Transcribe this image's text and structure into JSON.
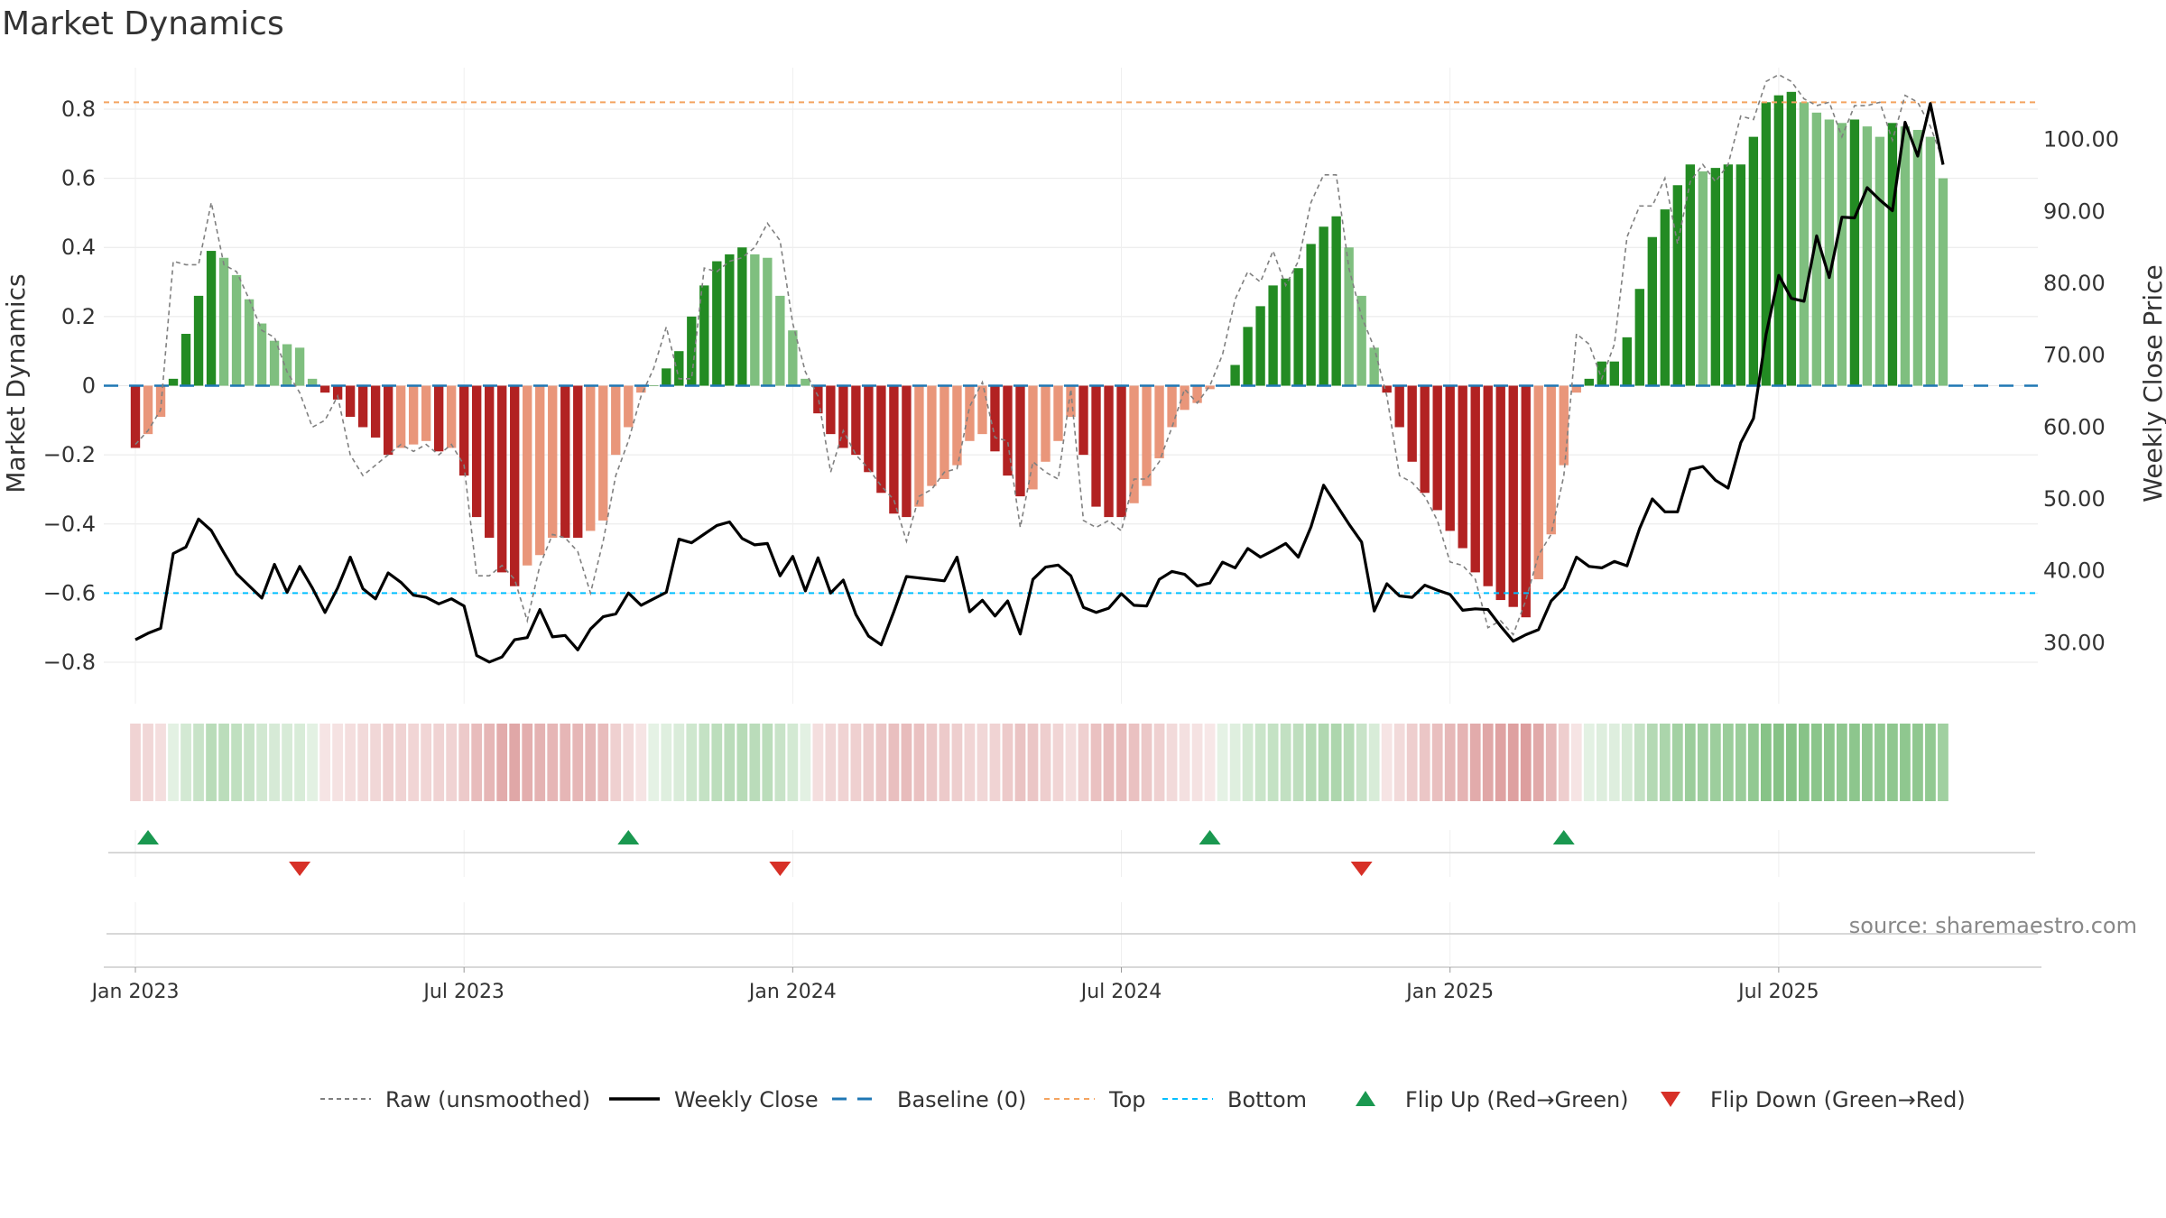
{
  "chart_data": {
    "type": "bar",
    "title": "Market Dynamics",
    "ylabel": "Market Dynamics",
    "y2label": "Weekly Close Price",
    "ylim": [
      -0.92,
      0.92
    ],
    "y2lim": [
      21.5,
      110
    ],
    "yticks": [
      -0.8,
      -0.6,
      -0.4,
      -0.2,
      0,
      0.2,
      0.4,
      0.6,
      0.8
    ],
    "ytick_labels": [
      "−0.8",
      "−0.6",
      "−0.4",
      "−0.2",
      "0",
      "0.2",
      "0.4",
      "0.6",
      "0.8"
    ],
    "y2ticks": [
      30,
      40,
      50,
      60,
      70,
      80,
      90,
      100
    ],
    "y2tick_labels": [
      "30.00",
      "40.00",
      "50.00",
      "60.00",
      "70.00",
      "80.00",
      "90.00",
      "100.00"
    ],
    "xlim": [
      -2.5,
      150.5
    ],
    "xticks": [
      {
        "week": 0,
        "label": "Jan 2023"
      },
      {
        "week": 26,
        "label": "Jul 2023"
      },
      {
        "week": 52,
        "label": "Jan 2024"
      },
      {
        "week": 78,
        "label": "Jul 2024"
      },
      {
        "week": 104,
        "label": "Jan 2025"
      },
      {
        "week": 130,
        "label": "Jul 2025"
      }
    ],
    "top_level": 0.82,
    "bottom_level": -0.6,
    "baseline": 0,
    "smoothed": [
      -0.18,
      -0.14,
      -0.09,
      0.02,
      0.15,
      0.26,
      0.39,
      0.37,
      0.32,
      0.25,
      0.18,
      0.13,
      0.12,
      0.11,
      0.02,
      -0.02,
      -0.04,
      -0.09,
      -0.12,
      -0.15,
      -0.2,
      -0.18,
      -0.17,
      -0.16,
      -0.19,
      -0.18,
      -0.26,
      -0.38,
      -0.44,
      -0.54,
      -0.58,
      -0.52,
      -0.49,
      -0.44,
      -0.44,
      -0.44,
      -0.42,
      -0.39,
      -0.2,
      -0.12,
      -0.02,
      0.0,
      0.05,
      0.1,
      0.2,
      0.29,
      0.36,
      0.38,
      0.4,
      0.38,
      0.37,
      0.26,
      0.16,
      0.02,
      -0.08,
      -0.14,
      -0.18,
      -0.2,
      -0.25,
      -0.31,
      -0.37,
      -0.38,
      -0.35,
      -0.29,
      -0.27,
      -0.23,
      -0.16,
      -0.14,
      -0.19,
      -0.26,
      -0.32,
      -0.3,
      -0.22,
      -0.16,
      -0.09,
      -0.2,
      -0.35,
      -0.38,
      -0.38,
      -0.34,
      -0.29,
      -0.21,
      -0.12,
      -0.07,
      -0.05,
      -0.01,
      0.0,
      0.06,
      0.17,
      0.23,
      0.29,
      0.31,
      0.34,
      0.41,
      0.46,
      0.49,
      0.4,
      0.26,
      0.11,
      -0.02,
      -0.12,
      -0.22,
      -0.31,
      -0.36,
      -0.42,
      -0.47,
      -0.54,
      -0.58,
      -0.62,
      -0.64,
      -0.67,
      -0.56,
      -0.43,
      -0.23,
      -0.02,
      0.02,
      0.07,
      0.07,
      0.14,
      0.28,
      0.43,
      0.51,
      0.58,
      0.64,
      0.62,
      0.63,
      0.64,
      0.64,
      0.72,
      0.82,
      0.84,
      0.85,
      0.82,
      0.79,
      0.77,
      0.76,
      0.77,
      0.75,
      0.72,
      0.76,
      0.75,
      0.74,
      0.72,
      0.6
    ],
    "raw": [
      -0.17,
      -0.13,
      -0.07,
      0.36,
      0.35,
      0.35,
      0.53,
      0.35,
      0.33,
      0.25,
      0.16,
      0.14,
      0.04,
      -0.02,
      -0.12,
      -0.1,
      -0.03,
      -0.2,
      -0.26,
      -0.23,
      -0.2,
      -0.17,
      -0.19,
      -0.17,
      -0.2,
      -0.17,
      -0.23,
      -0.55,
      -0.55,
      -0.52,
      -0.56,
      -0.68,
      -0.52,
      -0.43,
      -0.44,
      -0.48,
      -0.6,
      -0.45,
      -0.26,
      -0.16,
      -0.03,
      0.05,
      0.17,
      0.02,
      0.02,
      0.34,
      0.33,
      0.36,
      0.37,
      0.4,
      0.47,
      0.42,
      0.18,
      0.04,
      -0.03,
      -0.25,
      -0.13,
      -0.2,
      -0.24,
      -0.29,
      -0.33,
      -0.45,
      -0.32,
      -0.3,
      -0.25,
      -0.24,
      -0.06,
      0.01,
      -0.15,
      -0.16,
      -0.41,
      -0.22,
      -0.25,
      -0.27,
      -0.01,
      -0.39,
      -0.41,
      -0.39,
      -0.42,
      -0.27,
      -0.27,
      -0.22,
      -0.12,
      -0.01,
      -0.05,
      0.0,
      0.09,
      0.25,
      0.33,
      0.3,
      0.39,
      0.29,
      0.36,
      0.53,
      0.61,
      0.61,
      0.34,
      0.2,
      0.11,
      -0.03,
      -0.26,
      -0.28,
      -0.32,
      -0.39,
      -0.51,
      -0.52,
      -0.56,
      -0.7,
      -0.68,
      -0.72,
      -0.62,
      -0.49,
      -0.43,
      -0.26,
      0.15,
      0.12,
      0.02,
      0.12,
      0.43,
      0.52,
      0.52,
      0.6,
      0.41,
      0.59,
      0.64,
      0.59,
      0.64,
      0.78,
      0.77,
      0.88,
      0.9,
      0.88,
      0.83,
      0.81,
      0.82,
      0.72,
      0.81,
      0.81,
      0.82,
      0.71,
      0.84,
      0.82,
      0.75,
      0.65
    ],
    "weekly_close": [
      30.4,
      31.3,
      32.0,
      42.4,
      43.3,
      47.2,
      45.6,
      42.5,
      39.6,
      37.9,
      36.2,
      40.9,
      37.0,
      40.6,
      37.6,
      34.2,
      37.6,
      41.9,
      37.5,
      36.1,
      39.7,
      38.4,
      36.6,
      36.3,
      35.4,
      36.1,
      35.1,
      28.2,
      27.3,
      28.0,
      30.4,
      30.7,
      34.6,
      30.8,
      31.0,
      29.0,
      31.9,
      33.6,
      34.0,
      36.9,
      35.2,
      36.1,
      37.0,
      44.4,
      43.9,
      45.1,
      46.3,
      46.8,
      44.5,
      43.6,
      43.8,
      39.3,
      42.0,
      37.2,
      41.8,
      36.9,
      38.7,
      33.9,
      30.9,
      29.7,
      34.3,
      39.2,
      39.0,
      38.8,
      38.6,
      41.9,
      34.3,
      35.9,
      33.7,
      35.8,
      31.2,
      38.8,
      40.5,
      40.8,
      39.3,
      34.9,
      34.2,
      34.8,
      36.8,
      35.2,
      35.1,
      38.8,
      39.9,
      39.5,
      37.9,
      38.3,
      41.2,
      40.4,
      43.1,
      41.9,
      42.8,
      43.8,
      41.9,
      46.1,
      51.9,
      49.2,
      46.5,
      44.0,
      34.4,
      38.2,
      36.5,
      36.3,
      38.0,
      37.3,
      36.7,
      34.5,
      34.7,
      34.6,
      32.3,
      30.2,
      31.1,
      31.8,
      35.8,
      37.6,
      41.9,
      40.6,
      40.4,
      41.3,
      40.7,
      45.9,
      50.0,
      48.2,
      48.2,
      54.1,
      54.5,
      52.6,
      51.5,
      57.8,
      61.2,
      72.9,
      81.1,
      77.9,
      77.5,
      86.6,
      80.8,
      89.2,
      89.1,
      93.3,
      91.6,
      90.1,
      102.4,
      97.7,
      105.0,
      96.5
    ],
    "flip_up_weeks": [
      1,
      39,
      85,
      113
    ],
    "flip_down_weeks": [
      13,
      51,
      97
    ],
    "colors": {
      "strong_green": "#238b23",
      "light_green": "#7fbf7f",
      "strong_red": "#b22222",
      "light_red": "#e9967a",
      "top_line": "#f4a460",
      "bottom_line": "#00bfff",
      "baseline": "#1f77b4",
      "flip_up": "#1a9850",
      "flip_down": "#d73027",
      "close_line": "#000000",
      "raw_line": "#808080"
    },
    "legend": [
      {
        "key": "raw",
        "label": "Raw (unsmoothed)"
      },
      {
        "key": "close",
        "label": "Weekly Close"
      },
      {
        "key": "baseline",
        "label": "Baseline (0)"
      },
      {
        "key": "top",
        "label": "Top"
      },
      {
        "key": "bottom",
        "label": "Bottom"
      },
      {
        "key": "flip_up",
        "label": "Flip Up (Red→Green)"
      },
      {
        "key": "flip_down",
        "label": "Flip Down (Green→Red)"
      }
    ],
    "source": "source: sharemaestro.com"
  }
}
